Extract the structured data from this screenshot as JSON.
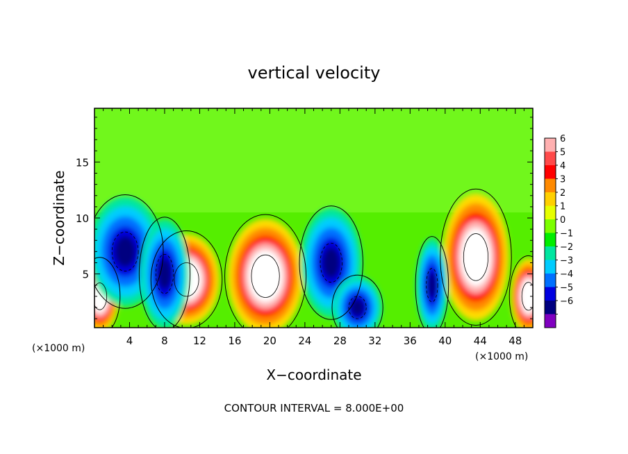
{
  "chart_data": {
    "type": "heatmap",
    "title": "vertical velocity",
    "xlabel": "X−coordinate",
    "ylabel": "Z−coordinate",
    "x_unit_left": "(×1000 m)",
    "x_unit_right": "(×1000 m)",
    "xlim": [
      0,
      50
    ],
    "ylim": [
      0.2,
      19.8
    ],
    "x_ticks": [
      4,
      8,
      12,
      16,
      20,
      24,
      28,
      32,
      36,
      40,
      44,
      48
    ],
    "x_tick_labels": [
      "4",
      "8",
      "12",
      "16",
      "20",
      "24",
      "28",
      "32",
      "36",
      "40",
      "44",
      "48"
    ],
    "y_ticks": [
      5,
      10,
      15
    ],
    "y_tick_labels": [
      "5",
      "10",
      "15"
    ],
    "footer": "CONTOUR INTERVAL = 8.000E+00",
    "colorbar": {
      "labels": [
        "6",
        "5",
        "4",
        "3",
        "2",
        "1",
        "0",
        "−1",
        "−2",
        "−3",
        "−4",
        "−5",
        "−6"
      ],
      "colors": [
        "#ffb0b0",
        "#ff4a4a",
        "#ff0000",
        "#ff8a00",
        "#ffd000",
        "#e6ff00",
        "#7cff00",
        "#00ee00",
        "#00e6a0",
        "#00ccff",
        "#0070ff",
        "#0000e0",
        "#000080",
        "#8000c0"
      ]
    },
    "features": [
      {
        "kind": "updraft",
        "x": 0.6,
        "z": 3.0,
        "rx": 1.6,
        "rz": 2.4
      },
      {
        "kind": "updraft",
        "x": 10.5,
        "z": 4.5,
        "rx": 2.8,
        "rz": 3.0
      },
      {
        "kind": "updraft",
        "x": 19.5,
        "z": 4.8,
        "rx": 3.2,
        "rz": 3.8
      },
      {
        "kind": "updraft",
        "x": 43.5,
        "z": 6.5,
        "rx": 2.8,
        "rz": 4.2
      },
      {
        "kind": "updraft",
        "x": 49.5,
        "z": 3.0,
        "rx": 1.5,
        "rz": 2.5
      },
      {
        "kind": "downdraft",
        "x": 3.5,
        "z": 7.0,
        "rx": 3.0,
        "rz": 3.5
      },
      {
        "kind": "downdraft",
        "x": 8.0,
        "z": 5.0,
        "rx": 2.0,
        "rz": 3.5
      },
      {
        "kind": "downdraft",
        "x": 27.0,
        "z": 6.0,
        "rx": 2.5,
        "rz": 3.5
      },
      {
        "kind": "downdraft",
        "x": 30.0,
        "z": 2.0,
        "rx": 2.0,
        "rz": 2.0
      },
      {
        "kind": "downdraft",
        "x": 38.5,
        "z": 4.0,
        "rx": 1.3,
        "rz": 3.0
      }
    ]
  }
}
